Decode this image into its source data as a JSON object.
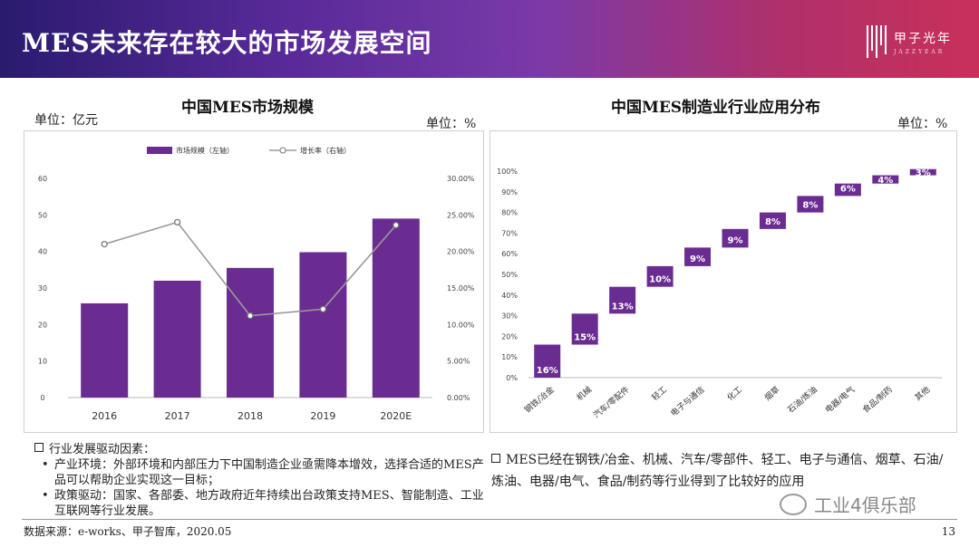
{
  "header": {
    "title": "MES未来存在较大的市场发展空间",
    "brand_cn": "甲子光年",
    "brand_en": "JAZZYEAR"
  },
  "left_panel": {
    "title": "中国MES市场规模",
    "unit_left": "单位：亿元",
    "unit_right": "单位：%"
  },
  "right_panel": {
    "title": "中国MES制造业行业应用分布",
    "unit": "单位：%"
  },
  "chart_data": [
    {
      "type": "bar",
      "title": "中国MES市场规模",
      "categories": [
        "2016",
        "2017",
        "2018",
        "2019",
        "2020E"
      ],
      "series": [
        {
          "name": "市场规模（左轴）",
          "type": "bar",
          "axis": "left",
          "values": [
            25.8,
            32.0,
            35.5,
            39.8,
            49.0
          ],
          "color": "#6a2c91"
        },
        {
          "name": "增长率（右轴）",
          "type": "line",
          "axis": "right",
          "values": [
            0.21,
            0.24,
            0.112,
            0.121,
            0.236
          ],
          "color": "#9a9a9a"
        }
      ],
      "y_left": {
        "min": 0,
        "max": 60,
        "ticks": [
          "0",
          "10",
          "20",
          "30",
          "40",
          "50",
          "60"
        ]
      },
      "y_right": {
        "min": 0,
        "max": 0.3,
        "ticks": [
          "0.00%",
          "5.00%",
          "10.00%",
          "15.00%",
          "20.00%",
          "25.00%",
          "30.00%"
        ]
      },
      "legend": "top"
    },
    {
      "type": "bar",
      "subtype": "waterfall",
      "title": "中国MES制造业行业应用分布",
      "categories": [
        "钢铁/冶金",
        "机械",
        "汽车/零配件",
        "轻工",
        "电子与通信",
        "化工",
        "烟草",
        "石油/炼油",
        "电器/电气",
        "食品/制药",
        "其他"
      ],
      "values": [
        16,
        15,
        13,
        10,
        9,
        9,
        8,
        8,
        6,
        4,
        3
      ],
      "labels": [
        "16%",
        "15%",
        "13%",
        "10%",
        "9%",
        "9%",
        "8%",
        "8%",
        "6%",
        "4%",
        "3%"
      ],
      "y": {
        "min": 0,
        "max": 100,
        "ticks": [
          "0%",
          "10%",
          "20%",
          "30%",
          "40%",
          "50%",
          "60%",
          "70%",
          "80%",
          "90%",
          "100%"
        ]
      },
      "color": "#6a2c91"
    }
  ],
  "notes_left": {
    "heading": "行业发展驱动因素：",
    "items": [
      "产业环境：外部环境和内部压力下中国制造企业亟需降本增效，选择合适的MES产品可以帮助企业实现这一目标；",
      "政策驱动：国家、各部委、地方政府近年持续出台政策支持MES、智能制造、工业互联网等行业发展。"
    ]
  },
  "notes_right": {
    "text": "MES已经在钢铁/冶金、机械、汽车/零部件、轻工、电子与通信、烟草、石油/炼油、电器/电气、食品/制药等行业得到了比较好的应用"
  },
  "footer": {
    "source": "数据来源：e-works、甲子智库，2020.05",
    "page": "13",
    "watermark": "工业4俱乐部"
  }
}
